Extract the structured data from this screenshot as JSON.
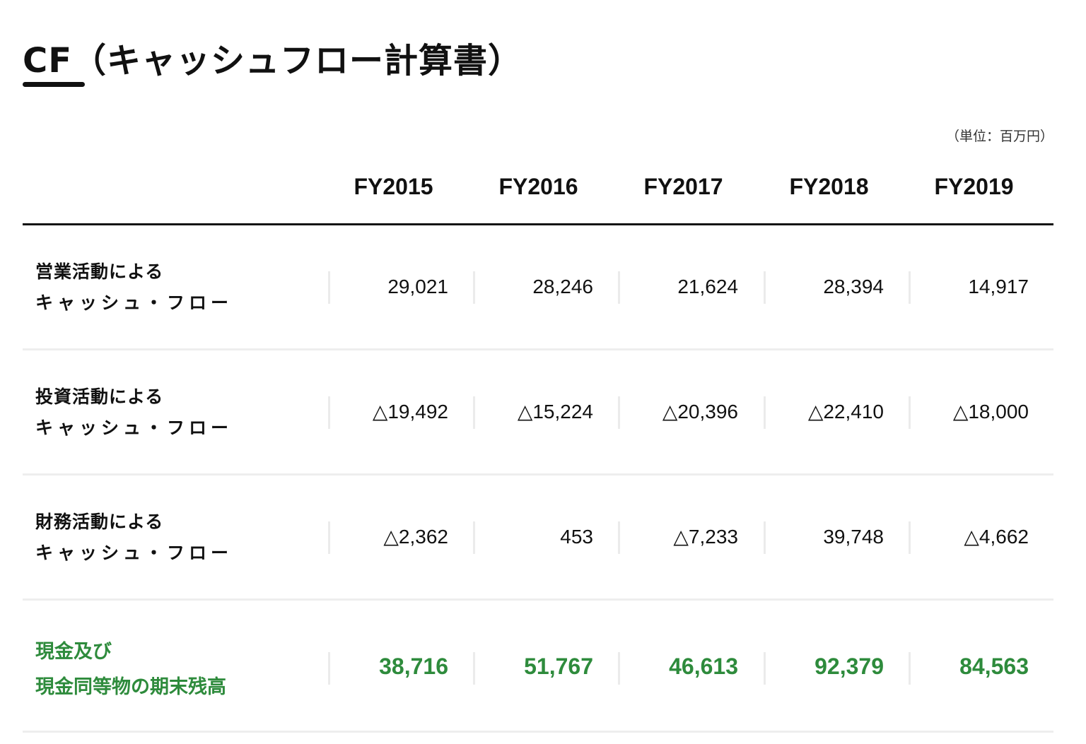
{
  "page": {
    "title": "CF（キャッシュフロー計算書）",
    "unit_note": "（単位：百万円）"
  },
  "colors": {
    "text": "#111111",
    "accent_green": "#2e8b3c",
    "divider": "#eeeeee",
    "header_rule": "#111111"
  },
  "table": {
    "columns": [
      "FY2015",
      "FY2016",
      "FY2017",
      "FY2018",
      "FY2019"
    ],
    "rows": [
      {
        "label_line1": "営業活動による",
        "label_line2": "キャッシュ・フロー",
        "values": [
          "29,021",
          "28,246",
          "21,624",
          "28,394",
          "14,917"
        ]
      },
      {
        "label_line1": "投資活動による",
        "label_line2": "キャッシュ・フロー",
        "values": [
          "△19,492",
          "△15,224",
          "△20,396",
          "△22,410",
          "△18,000"
        ]
      },
      {
        "label_line1": "財務活動による",
        "label_line2": "キャッシュ・フロー",
        "values": [
          "△2,362",
          "453",
          "△7,233",
          "39,748",
          "△4,662"
        ]
      },
      {
        "label_line1": "現金及び",
        "label_line2": "現金同等物の期末残高",
        "values": [
          "38,716",
          "51,767",
          "46,613",
          "92,379",
          "84,563"
        ],
        "highlight": true
      }
    ]
  }
}
